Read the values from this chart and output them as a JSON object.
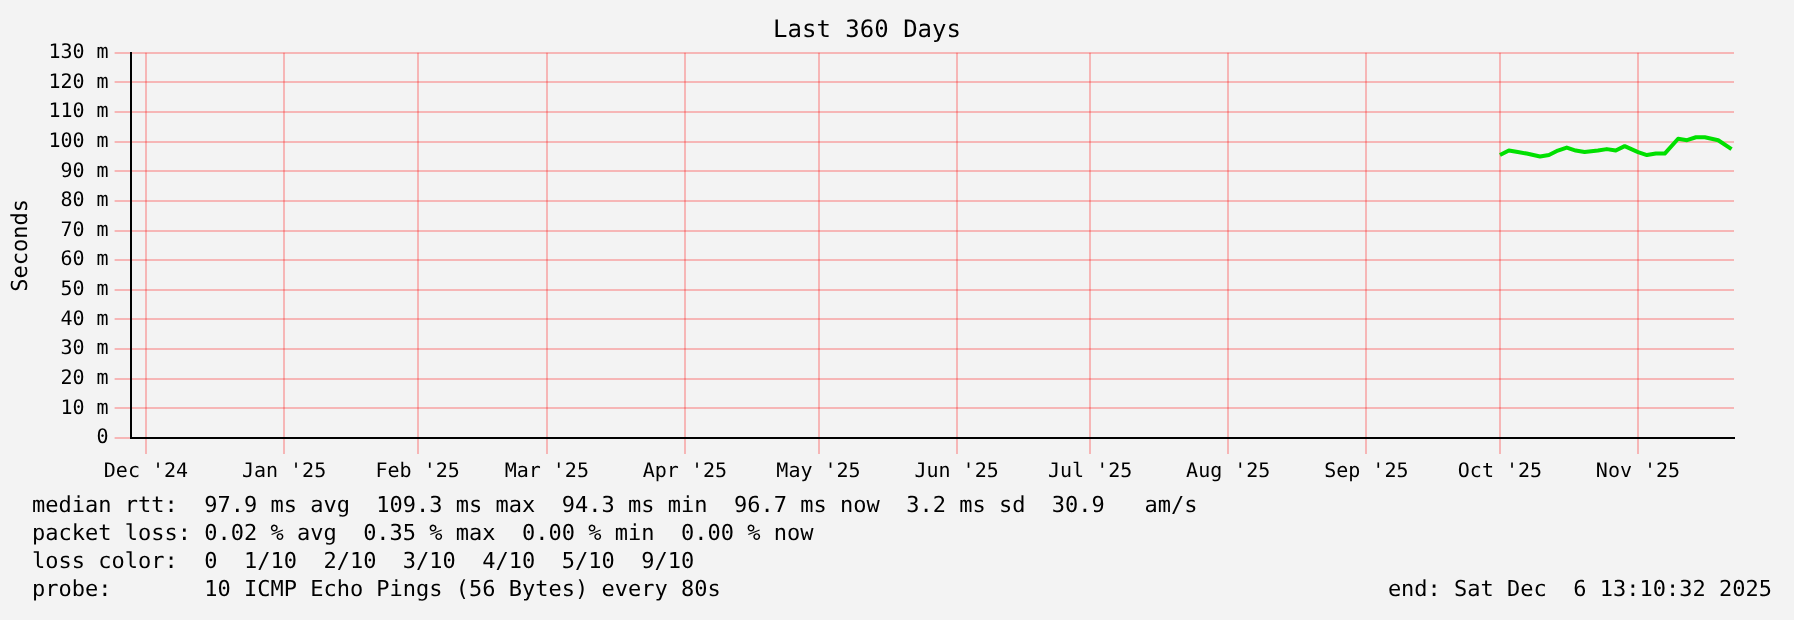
{
  "chart_data": {
    "type": "line",
    "title": "Last 360 Days",
    "ylabel": "Seconds",
    "x": [
      "2025-10-15",
      "2025-10-17",
      "2025-10-19",
      "2025-10-21",
      "2025-10-24",
      "2025-10-26",
      "2025-10-28",
      "2025-10-30",
      "2025-11-01",
      "2025-11-03",
      "2025-11-06",
      "2025-11-08",
      "2025-11-10",
      "2025-11-12",
      "2025-11-15",
      "2025-11-17",
      "2025-11-19",
      "2025-11-21",
      "2025-11-24",
      "2025-11-26",
      "2025-11-28",
      "2025-11-30",
      "2025-12-03",
      "2025-12-06"
    ],
    "series": [
      {
        "color": "#00e000",
        "values": [
          95.5,
          97,
          96.5,
          96,
          95,
          95.5,
          97,
          98,
          97,
          96.5,
          97,
          97.5,
          97,
          98.5,
          96.5,
          95.5,
          96,
          96,
          101,
          100.5,
          101.5,
          101.5,
          100.5,
          97.5
        ]
      }
    ],
    "xlim": [
      "2024-12-11T13:10",
      "2025-12-06T13:10"
    ],
    "xticks": [
      {
        "value": "2024-12-15",
        "label": "Dec '24"
      },
      {
        "value": "2025-01-15",
        "label": "Jan '25"
      },
      {
        "value": "2025-02-14",
        "label": "Feb '25"
      },
      {
        "value": "2025-03-15",
        "label": "Mar '25"
      },
      {
        "value": "2025-04-15",
        "label": "Apr '25"
      },
      {
        "value": "2025-05-15",
        "label": "May '25"
      },
      {
        "value": "2025-06-15",
        "label": "Jun '25"
      },
      {
        "value": "2025-07-15",
        "label": "Jul '25"
      },
      {
        "value": "2025-08-15",
        "label": "Aug '25"
      },
      {
        "value": "2025-09-15",
        "label": "Sep '25"
      },
      {
        "value": "2025-10-15",
        "label": "Oct '25"
      },
      {
        "value": "2025-11-15",
        "label": "Nov '25"
      }
    ],
    "ylim": [
      0,
      130
    ],
    "yticks": [
      0,
      {
        "value": 10,
        "label": "10 m"
      },
      {
        "value": 20,
        "label": "20 m"
      },
      {
        "value": 30,
        "label": "30 m"
      },
      {
        "value": 40,
        "label": "40 m"
      },
      {
        "value": 50,
        "label": "50 m"
      },
      {
        "value": 60,
        "label": "60 m"
      },
      {
        "value": 70,
        "label": "70 m"
      },
      {
        "value": 80,
        "label": "80 m"
      },
      {
        "value": 90,
        "label": "90 m"
      },
      {
        "value": 100,
        "label": "100 m"
      },
      {
        "value": 110,
        "label": "110 m"
      },
      {
        "value": 120,
        "label": "120 m"
      },
      {
        "value": 130,
        "label": "130 m"
      }
    ],
    "grid": true,
    "legend": false,
    "marker": "none",
    "line_style": "solid",
    "annotations": [
      "median rtt:  97.9 ms avg  109.3 ms max  94.3 ms min  96.7 ms now  3.2 ms sd  30.9   am/s",
      "packet loss: 0.02 % avg  0.35 % max  0.00 % min  0.00 % now",
      "loss color:  0  1/10  2/10  3/10  4/10  5/10  9/10",
      "probe:       10 ICMP Echo Pings (56 Bytes) every 80s",
      "end: Sat Dec  6 13:10:32 2025"
    ]
  }
}
